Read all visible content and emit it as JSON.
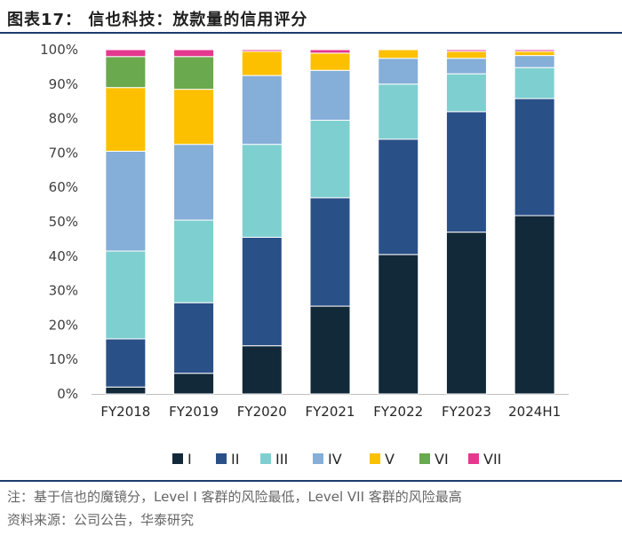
{
  "figure": {
    "title": "图表17： 信也科技：放款量的信用评分",
    "note": "注：基于信也的魔镜分，Level I 客群的风险最低，Level VII 客群的风险最高",
    "source": "资料来源：公司公告，华泰研究"
  },
  "chart_data": {
    "type": "bar",
    "stacked": true,
    "categories": [
      "FY2018",
      "FY2019",
      "FY2020",
      "FY2021",
      "FY2022",
      "FY2023",
      "2024H1"
    ],
    "y_ticks": [
      "0%",
      "10%",
      "20%",
      "30%",
      "40%",
      "50%",
      "60%",
      "70%",
      "80%",
      "90%",
      "100%"
    ],
    "ylim": [
      0,
      100
    ],
    "unit": "%",
    "legend_position": "bottom",
    "series": [
      {
        "name": "I",
        "color": "#12293a",
        "values": [
          2,
          6,
          14,
          25.5,
          40.5,
          47,
          51.8
        ]
      },
      {
        "name": "II",
        "color": "#2a5088",
        "values": [
          14,
          20.5,
          31.5,
          31.5,
          33.5,
          35,
          34
        ]
      },
      {
        "name": "III",
        "color": "#7ecfd0",
        "values": [
          25.5,
          24,
          27,
          22.5,
          16,
          11,
          9
        ]
      },
      {
        "name": "IV",
        "color": "#85aed8",
        "values": [
          29,
          22,
          20,
          14.5,
          7.5,
          4.5,
          3.5
        ]
      },
      {
        "name": "V",
        "color": "#fcc000",
        "values": [
          18.5,
          16,
          7,
          5,
          2.5,
          2,
          1.2
        ]
      },
      {
        "name": "VI",
        "color": "#6aa94d",
        "values": [
          9,
          9.5,
          0,
          0,
          0,
          0,
          0
        ]
      },
      {
        "name": "VII",
        "color": "#e4388f",
        "values": [
          2,
          2,
          0.5,
          1,
          0,
          0.5,
          0.5
        ]
      }
    ]
  }
}
